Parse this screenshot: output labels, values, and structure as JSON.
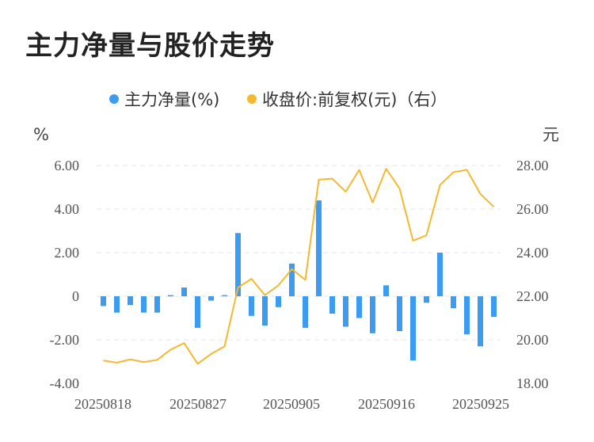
{
  "title": "主力净量与股价走势",
  "chart_data": {
    "type": "bar+line",
    "legend_position": "top",
    "left_unit": "%",
    "right_unit": "元",
    "x_ticks": [
      "20250818",
      "20250827",
      "20250905",
      "20250916",
      "20250925"
    ],
    "left_ticks": [
      "6.00",
      "4.00",
      "2.00",
      "0",
      "-2.00",
      "-4.00"
    ],
    "right_ticks": [
      "28.00",
      "26.00",
      "24.00",
      "22.00",
      "20.00",
      "18.00"
    ],
    "left_range": [
      -4,
      6
    ],
    "right_range": [
      18,
      28
    ],
    "grid": true,
    "series": [
      {
        "name": "主力净量(%)",
        "type": "bar",
        "axis": "left",
        "color": "#3d9cf0",
        "values": [
          -0.45,
          -0.75,
          -0.4,
          -0.75,
          -0.75,
          0.05,
          0.4,
          -1.45,
          -0.2,
          0.05,
          2.9,
          -0.9,
          -1.35,
          -0.5,
          1.5,
          -1.45,
          4.4,
          -0.8,
          -1.4,
          -1.0,
          -1.7,
          0.5,
          -1.6,
          -2.95,
          -0.3,
          2.0,
          -0.55,
          -1.75,
          -2.3,
          -0.95
        ]
      },
      {
        "name": "收盘价:前复权(元)（右）",
        "type": "line",
        "axis": "right",
        "color": "#f5b82e",
        "values": [
          19.05,
          18.95,
          19.1,
          18.98,
          19.08,
          19.55,
          19.85,
          18.9,
          19.35,
          19.7,
          22.4,
          22.8,
          22.05,
          22.5,
          23.25,
          22.75,
          27.35,
          27.4,
          26.8,
          27.8,
          26.3,
          27.85,
          26.95,
          24.55,
          24.8,
          27.1,
          27.7,
          27.8,
          26.7,
          26.1
        ]
      }
    ]
  }
}
